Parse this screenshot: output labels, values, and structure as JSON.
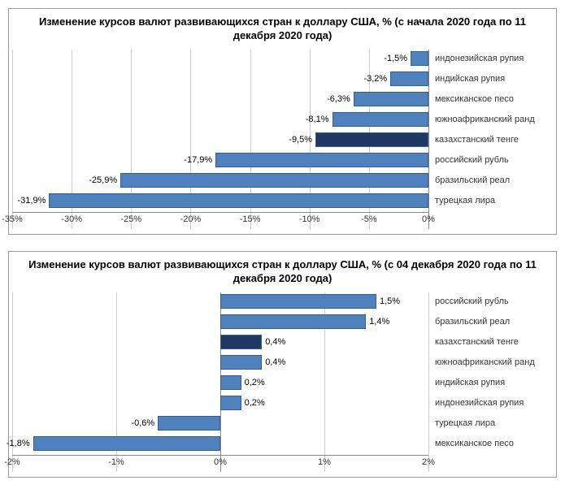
{
  "charts": [
    {
      "title": "Изменение курсов валют развивающихся стран  к доллару США,  % (с начала 2020 года по 11 декабря 2020 года)",
      "type": "bar",
      "orientation": "horizontal",
      "xlim": [
        -35,
        0
      ],
      "xtick_step": 5,
      "xtick_format": "percent-int",
      "plot_height_ratio": 0.72,
      "bar_color": "#4f81bd",
      "highlight_color": "#1f3864",
      "bar_border": "#385d8a",
      "grid_color": "#cccccc",
      "axis_color": "#888888",
      "label_fontsize": 11,
      "title_fontsize": 13,
      "bars": [
        {
          "label": "индонезийская рупия",
          "value": -1.5,
          "text": "-1,5%"
        },
        {
          "label": "индийская рупия",
          "value": -3.2,
          "text": "-3,2%"
        },
        {
          "label": "мексиканское песо",
          "value": -6.3,
          "text": "-6,3%"
        },
        {
          "label": "южноафриканский ранд",
          "value": -8.1,
          "text": "-8,1%"
        },
        {
          "label": "казахстанский тенге",
          "value": -9.5,
          "text": "-9,5%",
          "highlight": true
        },
        {
          "label": "российский рубль",
          "value": -17.9,
          "text": "-17,9%"
        },
        {
          "label": "бразильский реал",
          "value": -25.9,
          "text": "-25,9%"
        },
        {
          "label": "турецкая лира",
          "value": -31.9,
          "text": "-31,9%"
        }
      ]
    },
    {
      "title": "Изменение курсов валют развивающихся стран  к доллару США,  % (с 04 декабря 2020 года по 11 декабря 2020 года)",
      "type": "bar",
      "orientation": "horizontal",
      "xlim": [
        -2,
        2
      ],
      "xtick_step": 1,
      "xtick_format": "percent-int",
      "plot_height_ratio": 0.72,
      "bar_color": "#4f81bd",
      "highlight_color": "#1f3864",
      "bar_border": "#385d8a",
      "grid_color": "#cccccc",
      "axis_color": "#888888",
      "label_fontsize": 11,
      "title_fontsize": 13,
      "bars": [
        {
          "label": "российский рубль",
          "value": 1.5,
          "text": "1,5%"
        },
        {
          "label": "бразильский реал",
          "value": 1.4,
          "text": "1,4%"
        },
        {
          "label": "казахстанский тенге",
          "value": 0.4,
          "text": "0,4%",
          "highlight": true
        },
        {
          "label": "южноафриканский ранд",
          "value": 0.4,
          "text": "0,4%"
        },
        {
          "label": "индийская рупия",
          "value": 0.2,
          "text": "0,2%"
        },
        {
          "label": "индонезийская рупия",
          "value": 0.2,
          "text": "0,2%"
        },
        {
          "label": "турецкая лира",
          "value": -0.6,
          "text": "-0,6%"
        },
        {
          "label": "мексиканское песо",
          "value": -1.8,
          "text": "-1,8%"
        }
      ]
    }
  ]
}
